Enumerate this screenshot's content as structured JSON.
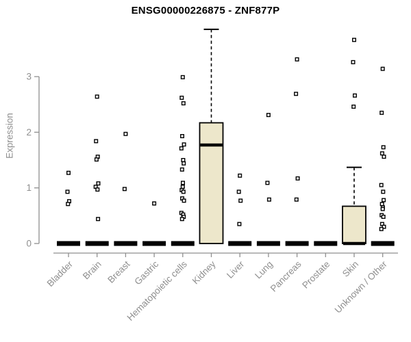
{
  "chart_data": {
    "type": "boxplot",
    "title": "ENSG00000226875 - ZNF877P",
    "ylabel": "Expression",
    "xlabel": "",
    "ylim": [
      0,
      3.95
    ],
    "yticks": [
      0,
      1,
      2,
      3
    ],
    "grid": false,
    "legend": "none",
    "categories": [
      "Bladder",
      "Brain",
      "Breast",
      "Gastric",
      "Hematopoietic cells",
      "Kidney",
      "Liver",
      "Lung",
      "Pancreas",
      "Prostate",
      "Skin",
      "Unknown / Other"
    ],
    "boxes": [
      {
        "category": "Bladder",
        "median": 0,
        "q1": 0,
        "q3": 0,
        "whisker_low": 0,
        "whisker_high": 0,
        "outliers": [
          1.27,
          0.93,
          0.76,
          0.71
        ]
      },
      {
        "category": "Brain",
        "median": 0,
        "q1": 0,
        "q3": 0,
        "whisker_low": 0,
        "whisker_high": 0,
        "outliers": [
          2.64,
          1.84,
          1.56,
          1.51,
          1.08,
          1.02,
          0.97,
          0.44
        ]
      },
      {
        "category": "Breast",
        "median": 0,
        "q1": 0,
        "q3": 0,
        "whisker_low": 0,
        "whisker_high": 0,
        "outliers": [
          1.97,
          0.98
        ]
      },
      {
        "category": "Gastric",
        "median": 0,
        "q1": 0,
        "q3": 0,
        "whisker_low": 0,
        "whisker_high": 0,
        "outliers": [
          0.72
        ]
      },
      {
        "category": "Hematopoietic cells",
        "median": 0,
        "q1": 0,
        "q3": 0,
        "whisker_low": 0,
        "whisker_high": 0,
        "outliers": [
          2.99,
          2.62,
          2.52,
          1.93,
          1.78,
          1.71,
          1.5,
          1.44,
          1.33,
          1.09,
          1.02,
          0.96,
          0.93,
          0.81,
          0.77,
          0.55,
          0.52,
          0.48,
          0.44
        ]
      },
      {
        "category": "Kidney",
        "median": 1.77,
        "q1": 0,
        "q3": 2.17,
        "whisker_low": 0,
        "whisker_high": 3.85,
        "outliers": []
      },
      {
        "category": "Liver",
        "median": 0,
        "q1": 0,
        "q3": 0,
        "whisker_low": 0,
        "whisker_high": 0,
        "outliers": [
          1.22,
          0.93,
          0.77,
          0.35
        ]
      },
      {
        "category": "Lung",
        "median": 0,
        "q1": 0,
        "q3": 0,
        "whisker_low": 0,
        "whisker_high": 0,
        "outliers": [
          2.31,
          1.09,
          0.79
        ]
      },
      {
        "category": "Pancreas",
        "median": 0,
        "q1": 0,
        "q3": 0,
        "whisker_low": 0,
        "whisker_high": 0,
        "outliers": [
          3.31,
          2.69,
          1.17,
          0.79
        ]
      },
      {
        "category": "Prostate",
        "median": 0,
        "q1": 0,
        "q3": 0,
        "whisker_low": 0,
        "whisker_high": 0,
        "outliers": []
      },
      {
        "category": "Skin",
        "median": 0,
        "q1": 0,
        "q3": 0.67,
        "whisker_low": 0,
        "whisker_high": 1.37,
        "outliers": [
          3.66,
          3.26,
          2.66,
          2.46
        ]
      },
      {
        "category": "Unknown / Other",
        "median": 0,
        "q1": 0,
        "q3": 0,
        "whisker_low": 0,
        "whisker_high": 0,
        "outliers": [
          3.14,
          2.35,
          1.73,
          1.62,
          1.56,
          1.05,
          0.93,
          0.78,
          0.71,
          0.65,
          0.62,
          0.51,
          0.48,
          0.35,
          0.3,
          0.26
        ]
      }
    ],
    "colors": {
      "box_fill": "#ede7cb",
      "box_border": "#000000",
      "median": "#000000",
      "whisker": "#000000",
      "outlier_stroke": "#000000",
      "outlier_fill": "#ffffff",
      "axis": "#8f8f8f",
      "tick_label": "#8f8f8f",
      "title": "#000000"
    }
  }
}
